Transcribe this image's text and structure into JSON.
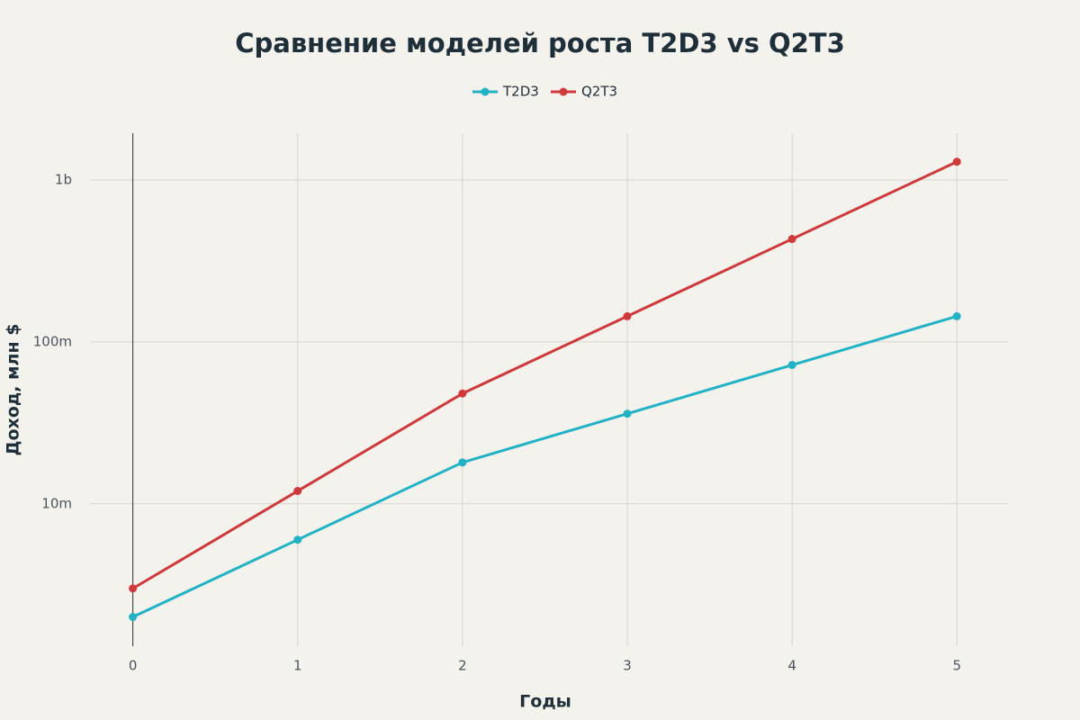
{
  "chart_data": {
    "type": "line",
    "title": "Сравнение моделей роста T2D3 vs Q2T3",
    "x_label": "Годы",
    "y_label": "Доход, млн $",
    "x": [
      0,
      1,
      2,
      3,
      4,
      5
    ],
    "series": [
      {
        "name": "T2D3",
        "color": "#22b2c6",
        "values": [
          2,
          6,
          18,
          36,
          72,
          144
        ]
      },
      {
        "name": "Q2T3",
        "color": "#d0393b",
        "values": [
          3,
          12,
          48,
          144,
          432,
          1296
        ]
      }
    ],
    "xlim": [
      -0.26,
      5.31
    ],
    "xticks": [
      0,
      1,
      2,
      3,
      4,
      5
    ],
    "ylim": [
      1.32,
      1945
    ],
    "y_scale": "log",
    "yticks": [
      {
        "value": 10,
        "label": "10m"
      },
      {
        "value": 100,
        "label": "100m"
      },
      {
        "value": 1000,
        "label": "1b"
      }
    ],
    "grid": true,
    "zeroline": true,
    "legend": "top"
  }
}
